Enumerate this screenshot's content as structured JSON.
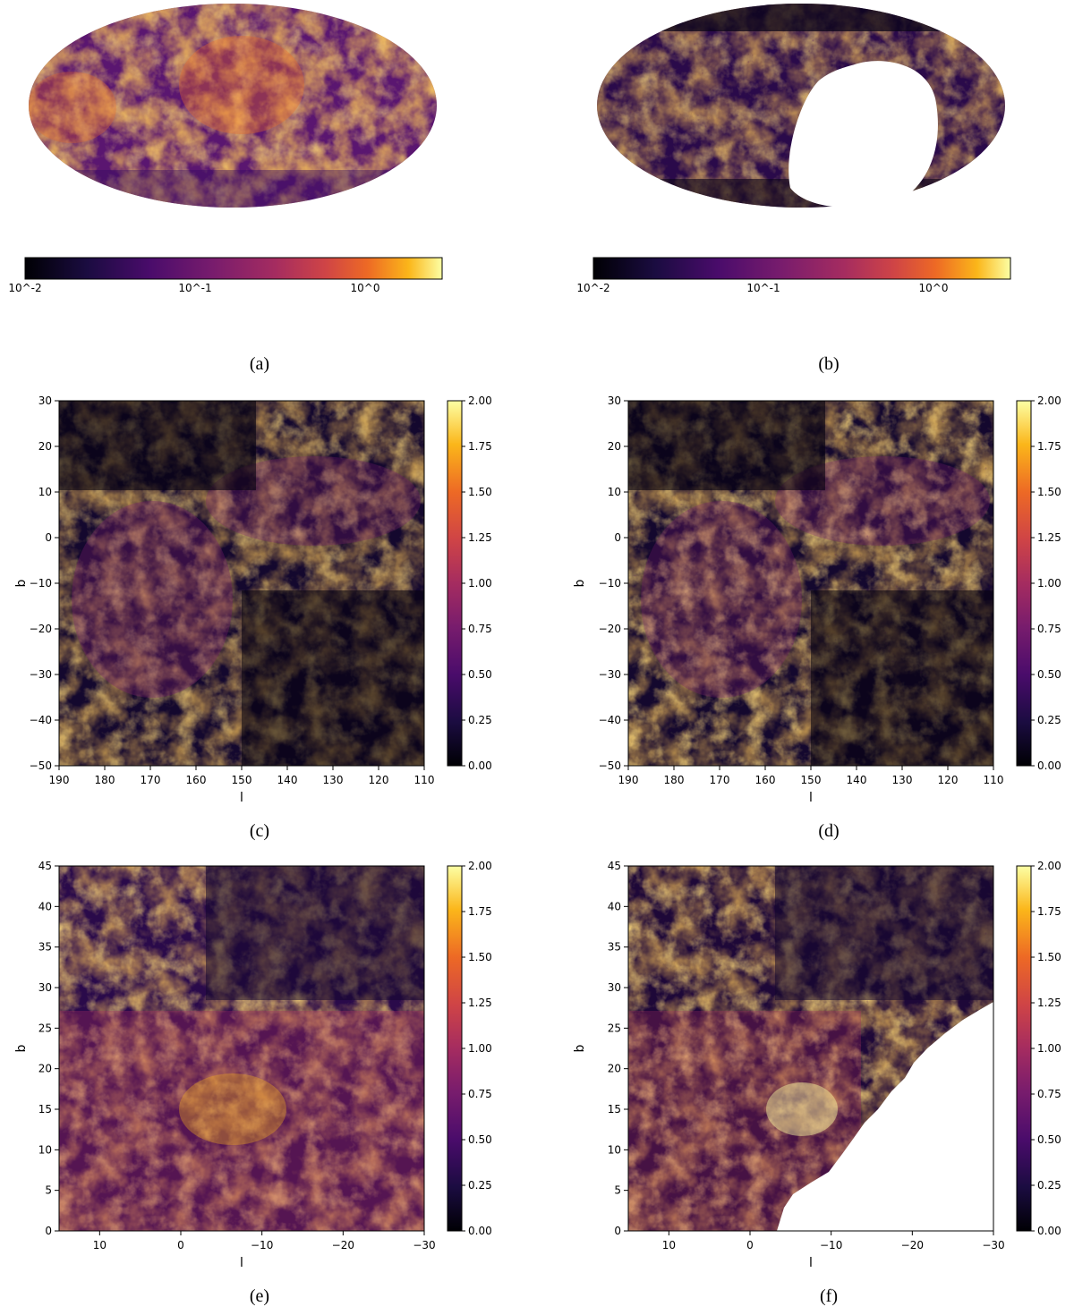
{
  "figure": {
    "panels": [
      {
        "id": "a",
        "caption": "(a)",
        "type": "mollweide",
        "colorbar": {
          "scale": "log",
          "ticks": [
            "10^-2",
            "10^-1",
            "10^0"
          ],
          "range": [
            0.01,
            3.0
          ]
        }
      },
      {
        "id": "b",
        "caption": "(b)",
        "type": "mollweide",
        "colorbar": {
          "scale": "log",
          "ticks": [
            "10^-2",
            "10^-1",
            "10^0"
          ],
          "range": [
            0.01,
            3.0
          ]
        },
        "masked_region": true
      },
      {
        "id": "c",
        "caption": "(c)",
        "type": "heatmap",
        "xlabel": "l",
        "ylabel": "b",
        "xticks": [
          "190",
          "180",
          "170",
          "160",
          "150",
          "140",
          "130",
          "120",
          "110"
        ],
        "yticks": [
          "30",
          "20",
          "10",
          "0",
          "−10",
          "−20",
          "−30",
          "−40",
          "−50"
        ],
        "colorbar_ticks": [
          "2.00",
          "1.75",
          "1.50",
          "1.25",
          "1.00",
          "0.75",
          "0.50",
          "0.25",
          "0.00"
        ]
      },
      {
        "id": "d",
        "caption": "(d)",
        "type": "heatmap",
        "xlabel": "l",
        "ylabel": "b",
        "xticks": [
          "190",
          "180",
          "170",
          "160",
          "150",
          "140",
          "130",
          "120",
          "110"
        ],
        "yticks": [
          "30",
          "20",
          "10",
          "0",
          "−10",
          "−20",
          "−30",
          "−40",
          "−50"
        ],
        "colorbar_ticks": [
          "2.00",
          "1.75",
          "1.50",
          "1.25",
          "1.00",
          "0.75",
          "0.50",
          "0.25",
          "0.00"
        ]
      },
      {
        "id": "e",
        "caption": "(e)",
        "type": "heatmap",
        "xlabel": "l",
        "ylabel": "b",
        "xticks": [
          "10",
          "0",
          "−10",
          "−20",
          "−30"
        ],
        "yticks": [
          "45",
          "40",
          "35",
          "30",
          "25",
          "20",
          "15",
          "10",
          "5",
          "0"
        ],
        "colorbar_ticks": [
          "2.00",
          "1.75",
          "1.50",
          "1.25",
          "1.00",
          "0.75",
          "0.50",
          "0.25",
          "0.00"
        ]
      },
      {
        "id": "f",
        "caption": "(f)",
        "type": "heatmap",
        "xlabel": "l",
        "ylabel": "b",
        "xticks": [
          "10",
          "0",
          "−10",
          "−20",
          "−30"
        ],
        "yticks": [
          "45",
          "40",
          "35",
          "30",
          "25",
          "20",
          "15",
          "10",
          "5",
          "0"
        ],
        "colorbar_ticks": [
          "2.00",
          "1.75",
          "1.50",
          "1.25",
          "1.00",
          "0.75",
          "0.50",
          "0.25",
          "0.00"
        ],
        "masked_region": true
      }
    ],
    "colormap": "inferno",
    "colors": {
      "c0": "#000004",
      "c1": "#320a5e",
      "c2": "#781c6d",
      "c3": "#bc3754",
      "c4": "#ed6925",
      "c5": "#fbb61a",
      "c6": "#fcffa4"
    }
  },
  "chart_data": [
    {
      "type": "heatmap",
      "panel": "a",
      "colorbar_range": [
        0.01,
        3.0
      ],
      "colorbar_scale": "log"
    },
    {
      "type": "heatmap",
      "panel": "b",
      "colorbar_range": [
        0.01,
        3.0
      ],
      "colorbar_scale": "log"
    },
    {
      "type": "heatmap",
      "panel": "c",
      "xlabel": "l",
      "ylabel": "b",
      "xlim": [
        190,
        110
      ],
      "ylim": [
        -50,
        30
      ],
      "colorbar_range": [
        0.0,
        2.0
      ]
    },
    {
      "type": "heatmap",
      "panel": "d",
      "xlabel": "l",
      "ylabel": "b",
      "xlim": [
        190,
        110
      ],
      "ylim": [
        -50,
        30
      ],
      "colorbar_range": [
        0.0,
        2.0
      ]
    },
    {
      "type": "heatmap",
      "panel": "e",
      "xlabel": "l",
      "ylabel": "b",
      "xlim": [
        15,
        -30
      ],
      "ylim": [
        0,
        45
      ],
      "colorbar_range": [
        0.0,
        2.0
      ]
    },
    {
      "type": "heatmap",
      "panel": "f",
      "xlabel": "l",
      "ylabel": "b",
      "xlim": [
        15,
        -30
      ],
      "ylim": [
        0,
        45
      ],
      "colorbar_range": [
        0.0,
        2.0
      ]
    }
  ]
}
